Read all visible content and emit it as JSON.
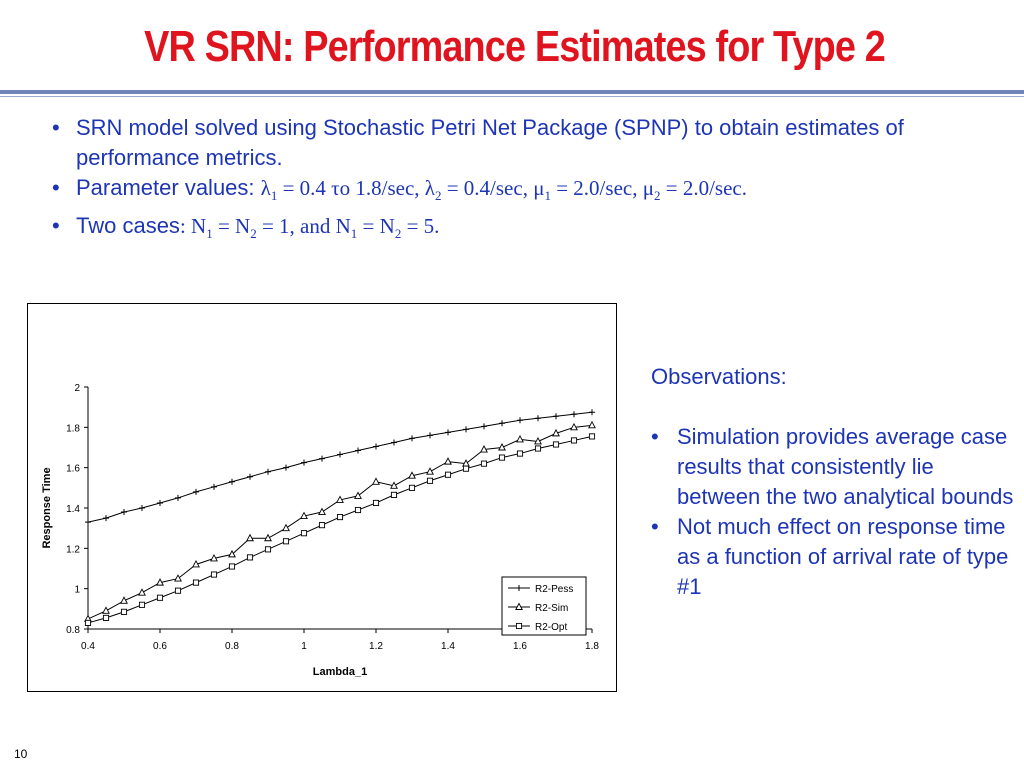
{
  "slide": {
    "title": "VR SRN: Performance Estimates for Type 2",
    "page_number": "10",
    "accent_color": "#e0141e",
    "text_color": "#1d35b4"
  },
  "bullets": {
    "b1_text": "SRN model solved using Stochastic Petri Net Package (SPNP) to obtain estimates of performance metrics.",
    "b2_lead": "Parameter values: ",
    "b2_p1": "λ",
    "b2_p1_sub": "1",
    "b2_p2": " = 0.4 το 1.8/sec, λ",
    "b2_p2_sub": "2",
    "b2_p3": " = 0.4/sec, μ",
    "b2_p3_sub": "1",
    "b2_p4": " = 2.0/sec, μ",
    "b2_p4_sub": "2",
    "b2_p5": " = 2.0/sec.",
    "b3_lead": "Two cases",
    "b3_p1": ": N",
    "b3_p1_sub": "1",
    "b3_p2": " = N",
    "b3_p2_sub": "2",
    "b3_p3": " = 1, and N",
    "b3_p3_sub": "1",
    "b3_p4": " = N",
    "b3_p4_sub": "2",
    "b3_p5": " = 5."
  },
  "observations": {
    "heading": "Observations:",
    "items": [
      "Simulation provides average case results that consistently lie between the two analytical bounds",
      "Not much effect on response time as a function of arrival rate of type #1"
    ]
  },
  "chart_data": {
    "type": "line",
    "xlabel": "Lambda_1",
    "ylabel": "Response Time",
    "xlim": [
      0.4,
      1.8
    ],
    "ylim": [
      0.8,
      2.0
    ],
    "xticks": [
      "0.4",
      "0.6",
      "0.8",
      "1",
      "1.2",
      "1.4",
      "1.6",
      "1.8"
    ],
    "yticks": [
      "0.8",
      "1",
      "1.2",
      "1.4",
      "1.6",
      "1.8",
      "2"
    ],
    "grid": false,
    "legend_position": "bottom-right",
    "x": [
      0.4,
      0.45,
      0.5,
      0.55,
      0.6,
      0.65,
      0.7,
      0.75,
      0.8,
      0.85,
      0.9,
      0.95,
      1.0,
      1.05,
      1.1,
      1.15,
      1.2,
      1.25,
      1.3,
      1.35,
      1.4,
      1.45,
      1.5,
      1.55,
      1.6,
      1.65,
      1.7,
      1.75,
      1.8
    ],
    "series": [
      {
        "name": "R2-Pess",
        "marker": "plus",
        "values": [
          1.33,
          1.35,
          1.38,
          1.4,
          1.425,
          1.45,
          1.48,
          1.505,
          1.53,
          1.555,
          1.58,
          1.6,
          1.625,
          1.645,
          1.665,
          1.685,
          1.705,
          1.725,
          1.745,
          1.76,
          1.775,
          1.79,
          1.805,
          1.82,
          1.835,
          1.845,
          1.855,
          1.865,
          1.875
        ]
      },
      {
        "name": "R2-Sim",
        "marker": "triangle",
        "values": [
          0.85,
          0.89,
          0.94,
          0.98,
          1.03,
          1.05,
          1.12,
          1.15,
          1.17,
          1.25,
          1.25,
          1.3,
          1.36,
          1.38,
          1.44,
          1.46,
          1.53,
          1.51,
          1.56,
          1.58,
          1.63,
          1.62,
          1.69,
          1.7,
          1.74,
          1.73,
          1.77,
          1.8,
          1.81
        ]
      },
      {
        "name": "R2-Opt",
        "marker": "square",
        "values": [
          0.83,
          0.855,
          0.885,
          0.92,
          0.955,
          0.99,
          1.03,
          1.07,
          1.11,
          1.155,
          1.195,
          1.235,
          1.275,
          1.315,
          1.355,
          1.39,
          1.425,
          1.465,
          1.5,
          1.535,
          1.565,
          1.595,
          1.62,
          1.65,
          1.67,
          1.695,
          1.715,
          1.735,
          1.755
        ]
      }
    ]
  }
}
